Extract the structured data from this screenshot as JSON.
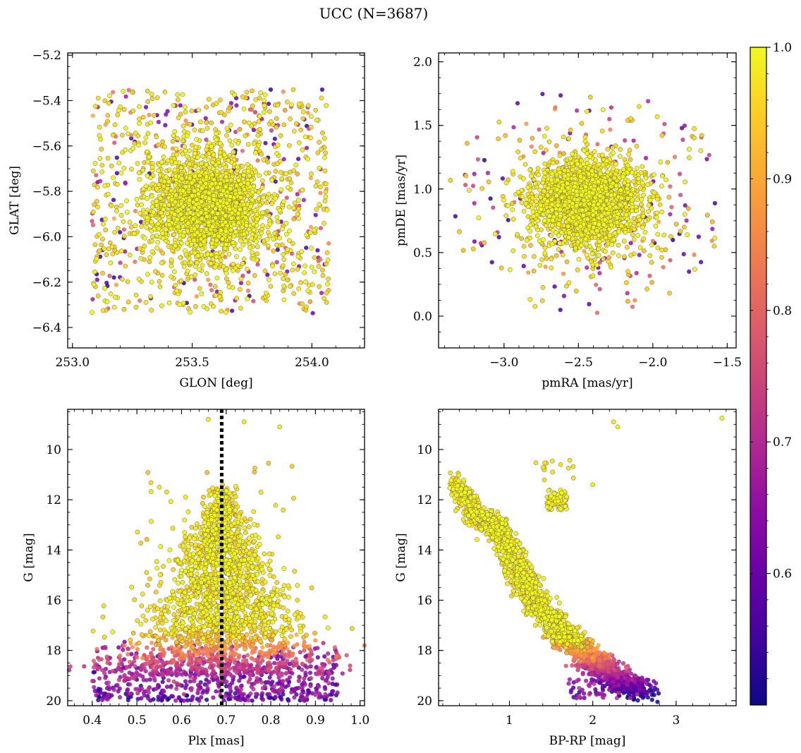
{
  "figure": {
    "title": "UCC (N=3687)",
    "colormap": "plasma",
    "n_members": 3687
  },
  "colorbar": {
    "vmin": 0.5,
    "vmax": 1.0,
    "ticks": [
      0.6,
      0.7,
      0.8,
      0.9,
      1.0
    ],
    "tick_labels": [
      "0.6",
      "0.7",
      "0.8",
      "0.9",
      "1.0"
    ]
  },
  "chart_data": [
    {
      "id": "sky",
      "type": "scatter",
      "title": "",
      "xlabel": "GLON [deg]",
      "ylabel": "GLAT [deg]",
      "xlim": [
        252.98,
        254.22
      ],
      "ylim": [
        -6.49,
        -5.19
      ],
      "xticks": [
        253.0,
        253.5,
        254.0
      ],
      "xtick_labels": [
        "253.0",
        "253.5",
        "254.0"
      ],
      "yticks": [
        -6.4,
        -6.2,
        -6.0,
        -5.8,
        -5.6,
        -5.4,
        -5.2
      ],
      "ytick_labels": [
        "−6.4",
        "−6.2",
        "−6.0",
        "−5.8",
        "−5.6",
        "−5.4",
        "−5.2"
      ],
      "x_inverted": false,
      "y_inverted": false,
      "reference_line": null,
      "cluster": {
        "center": [
          253.56,
          -5.86
        ],
        "core_sigma": [
          0.12,
          0.11
        ],
        "field_x_range": [
          253.08,
          254.07
        ],
        "field_y_range": [
          -6.34,
          -5.35
        ]
      }
    },
    {
      "id": "pm",
      "type": "scatter",
      "title": "",
      "xlabel": "pmRA [mas/yr]",
      "ylabel": "pmDE [mas/yr]",
      "xlim": [
        -3.44,
        -1.44
      ],
      "ylim": [
        -0.25,
        2.07
      ],
      "xticks": [
        -3.0,
        -2.5,
        -2.0,
        -1.5
      ],
      "xtick_labels": [
        "−3.0",
        "−2.5",
        "−2.0",
        "−1.5"
      ],
      "yticks": [
        0.0,
        0.5,
        1.0,
        1.5,
        2.0
      ],
      "ytick_labels": [
        "0.0",
        "0.5",
        "1.0",
        "1.5",
        "2.0"
      ],
      "x_inverted": false,
      "y_inverted": false,
      "reference_line": null,
      "cluster": {
        "center": [
          -2.44,
          0.9
        ],
        "core_sigma": [
          0.18,
          0.17
        ],
        "field_x_range": [
          -3.3,
          -1.6
        ],
        "field_y_range": [
          -0.06,
          1.88
        ]
      }
    },
    {
      "id": "plx",
      "type": "scatter",
      "title": "",
      "xlabel": "Plx [mas]",
      "ylabel": "G [mag]",
      "xlim": [
        0.345,
        1.01
      ],
      "ylim": [
        20.2,
        8.4
      ],
      "xticks": [
        0.4,
        0.5,
        0.6,
        0.7,
        0.8,
        0.9,
        1.0
      ],
      "xtick_labels": [
        "0.4",
        "0.5",
        "0.6",
        "0.7",
        "0.8",
        "0.9",
        "1.0"
      ],
      "yticks": [
        10,
        12,
        14,
        16,
        18,
        20
      ],
      "ytick_labels": [
        "10",
        "12",
        "14",
        "16",
        "18",
        "20"
      ],
      "x_inverted": false,
      "y_inverted": true,
      "reference_line": {
        "axis": "x",
        "value": 0.69,
        "style": "dotted"
      },
      "cluster": {
        "center_plx": 0.69,
        "g_range": [
          8.8,
          20.0
        ],
        "field_plx_range": [
          0.4,
          0.95
        ],
        "field_g_range": [
          17.6,
          20.0
        ]
      }
    },
    {
      "id": "cmd",
      "type": "scatter",
      "title": "",
      "xlabel": "BP-RP [mag]",
      "ylabel": "G [mag]",
      "xlim": [
        0.15,
        3.72
      ],
      "ylim": [
        20.2,
        8.4
      ],
      "xticks": [
        1,
        2,
        3
      ],
      "xtick_labels": [
        "1",
        "2",
        "3"
      ],
      "yticks": [
        10,
        12,
        14,
        16,
        18,
        20
      ],
      "ytick_labels": [
        "10",
        "12",
        "14",
        "16",
        "18",
        "20"
      ],
      "x_inverted": false,
      "y_inverted": true,
      "reference_line": null,
      "sequence": {
        "main_sequence": [
          [
            0.3,
            11.2
          ],
          [
            0.6,
            12.6
          ],
          [
            0.9,
            13.2
          ],
          [
            1.1,
            14.8
          ],
          [
            1.3,
            16.0
          ],
          [
            1.6,
            17.2
          ],
          [
            1.9,
            18.1
          ],
          [
            2.2,
            18.9
          ],
          [
            2.6,
            19.7
          ]
        ],
        "red_clump": [
          [
            1.45,
            11.6
          ],
          [
            1.7,
            12.4
          ]
        ],
        "bright_stars": [
          [
            2.25,
            8.9
          ],
          [
            2.3,
            9.1
          ],
          [
            3.55,
            8.75
          ],
          [
            2.0,
            11.4
          ]
        ]
      }
    }
  ]
}
